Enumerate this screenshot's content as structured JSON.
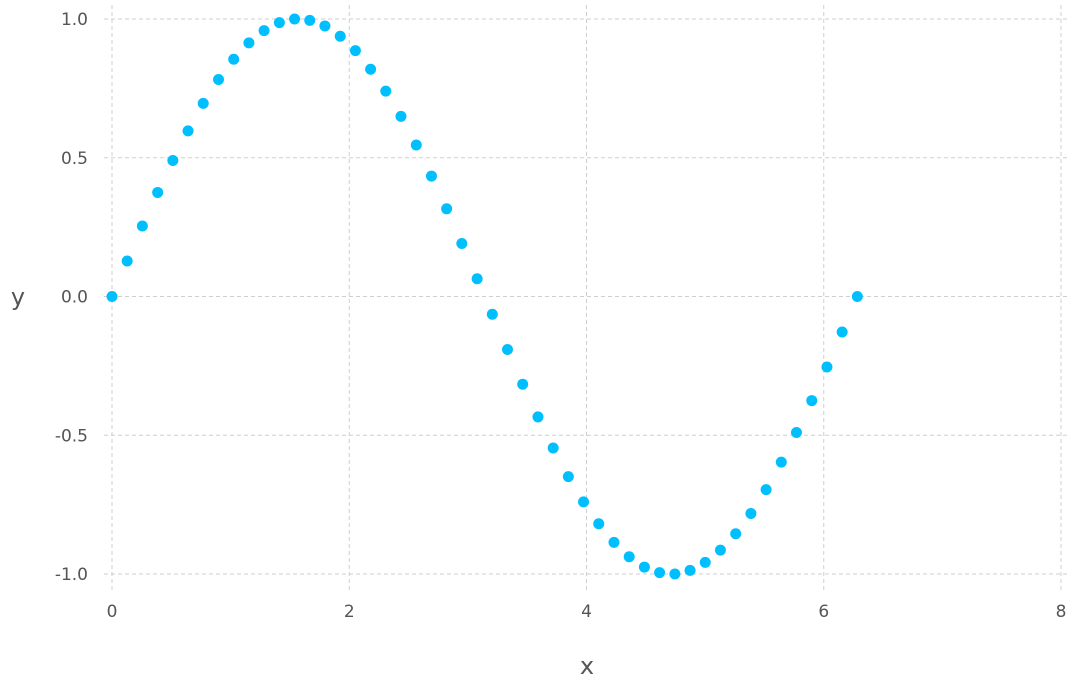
{
  "chart_data": {
    "type": "scatter",
    "title": "",
    "xlabel": "x",
    "ylabel": "y",
    "xlim": [
      0,
      8
    ],
    "ylim": [
      -1,
      1
    ],
    "x_ticks": [
      0,
      2,
      4,
      6,
      8
    ],
    "y_ticks": [
      1.0,
      0.5,
      0.0,
      -0.5,
      -1.0
    ],
    "x_tick_labels": [
      "0",
      "2",
      "4",
      "6",
      "8"
    ],
    "y_tick_labels": [
      "1.0",
      "0.5",
      "0.0",
      "-0.5",
      "-1.0"
    ],
    "grid": true,
    "grid_style": "dashed",
    "legend": "none",
    "marker_color": "#00bfff",
    "grid_color": "#cfcfcf",
    "series": [
      {
        "x": [
          0.0,
          0.128,
          0.256,
          0.385,
          0.513,
          0.641,
          0.769,
          0.898,
          1.026,
          1.154,
          1.282,
          1.411,
          1.539,
          1.667,
          1.795,
          1.924,
          2.052,
          2.18,
          2.308,
          2.436,
          2.565,
          2.693,
          2.821,
          2.949,
          3.078,
          3.206,
          3.334,
          3.462,
          3.591,
          3.719,
          3.847,
          3.975,
          4.103,
          4.232,
          4.36,
          4.488,
          4.616,
          4.745,
          4.873,
          5.001,
          5.129,
          5.258,
          5.386,
          5.514,
          5.642,
          5.77,
          5.899,
          6.027,
          6.155,
          6.283
        ],
        "y": [
          0.0,
          0.128,
          0.254,
          0.375,
          0.49,
          0.597,
          0.696,
          0.782,
          0.855,
          0.914,
          0.958,
          0.987,
          1.0,
          0.995,
          0.975,
          0.938,
          0.886,
          0.819,
          0.74,
          0.649,
          0.546,
          0.434,
          0.316,
          0.191,
          0.064,
          -0.064,
          -0.191,
          -0.316,
          -0.434,
          -0.546,
          -0.649,
          -0.74,
          -0.819,
          -0.886,
          -0.938,
          -0.975,
          -0.995,
          -1.0,
          -0.987,
          -0.958,
          -0.914,
          -0.855,
          -0.782,
          -0.696,
          -0.597,
          -0.49,
          -0.375,
          -0.254,
          -0.128,
          0.0
        ]
      }
    ]
  }
}
